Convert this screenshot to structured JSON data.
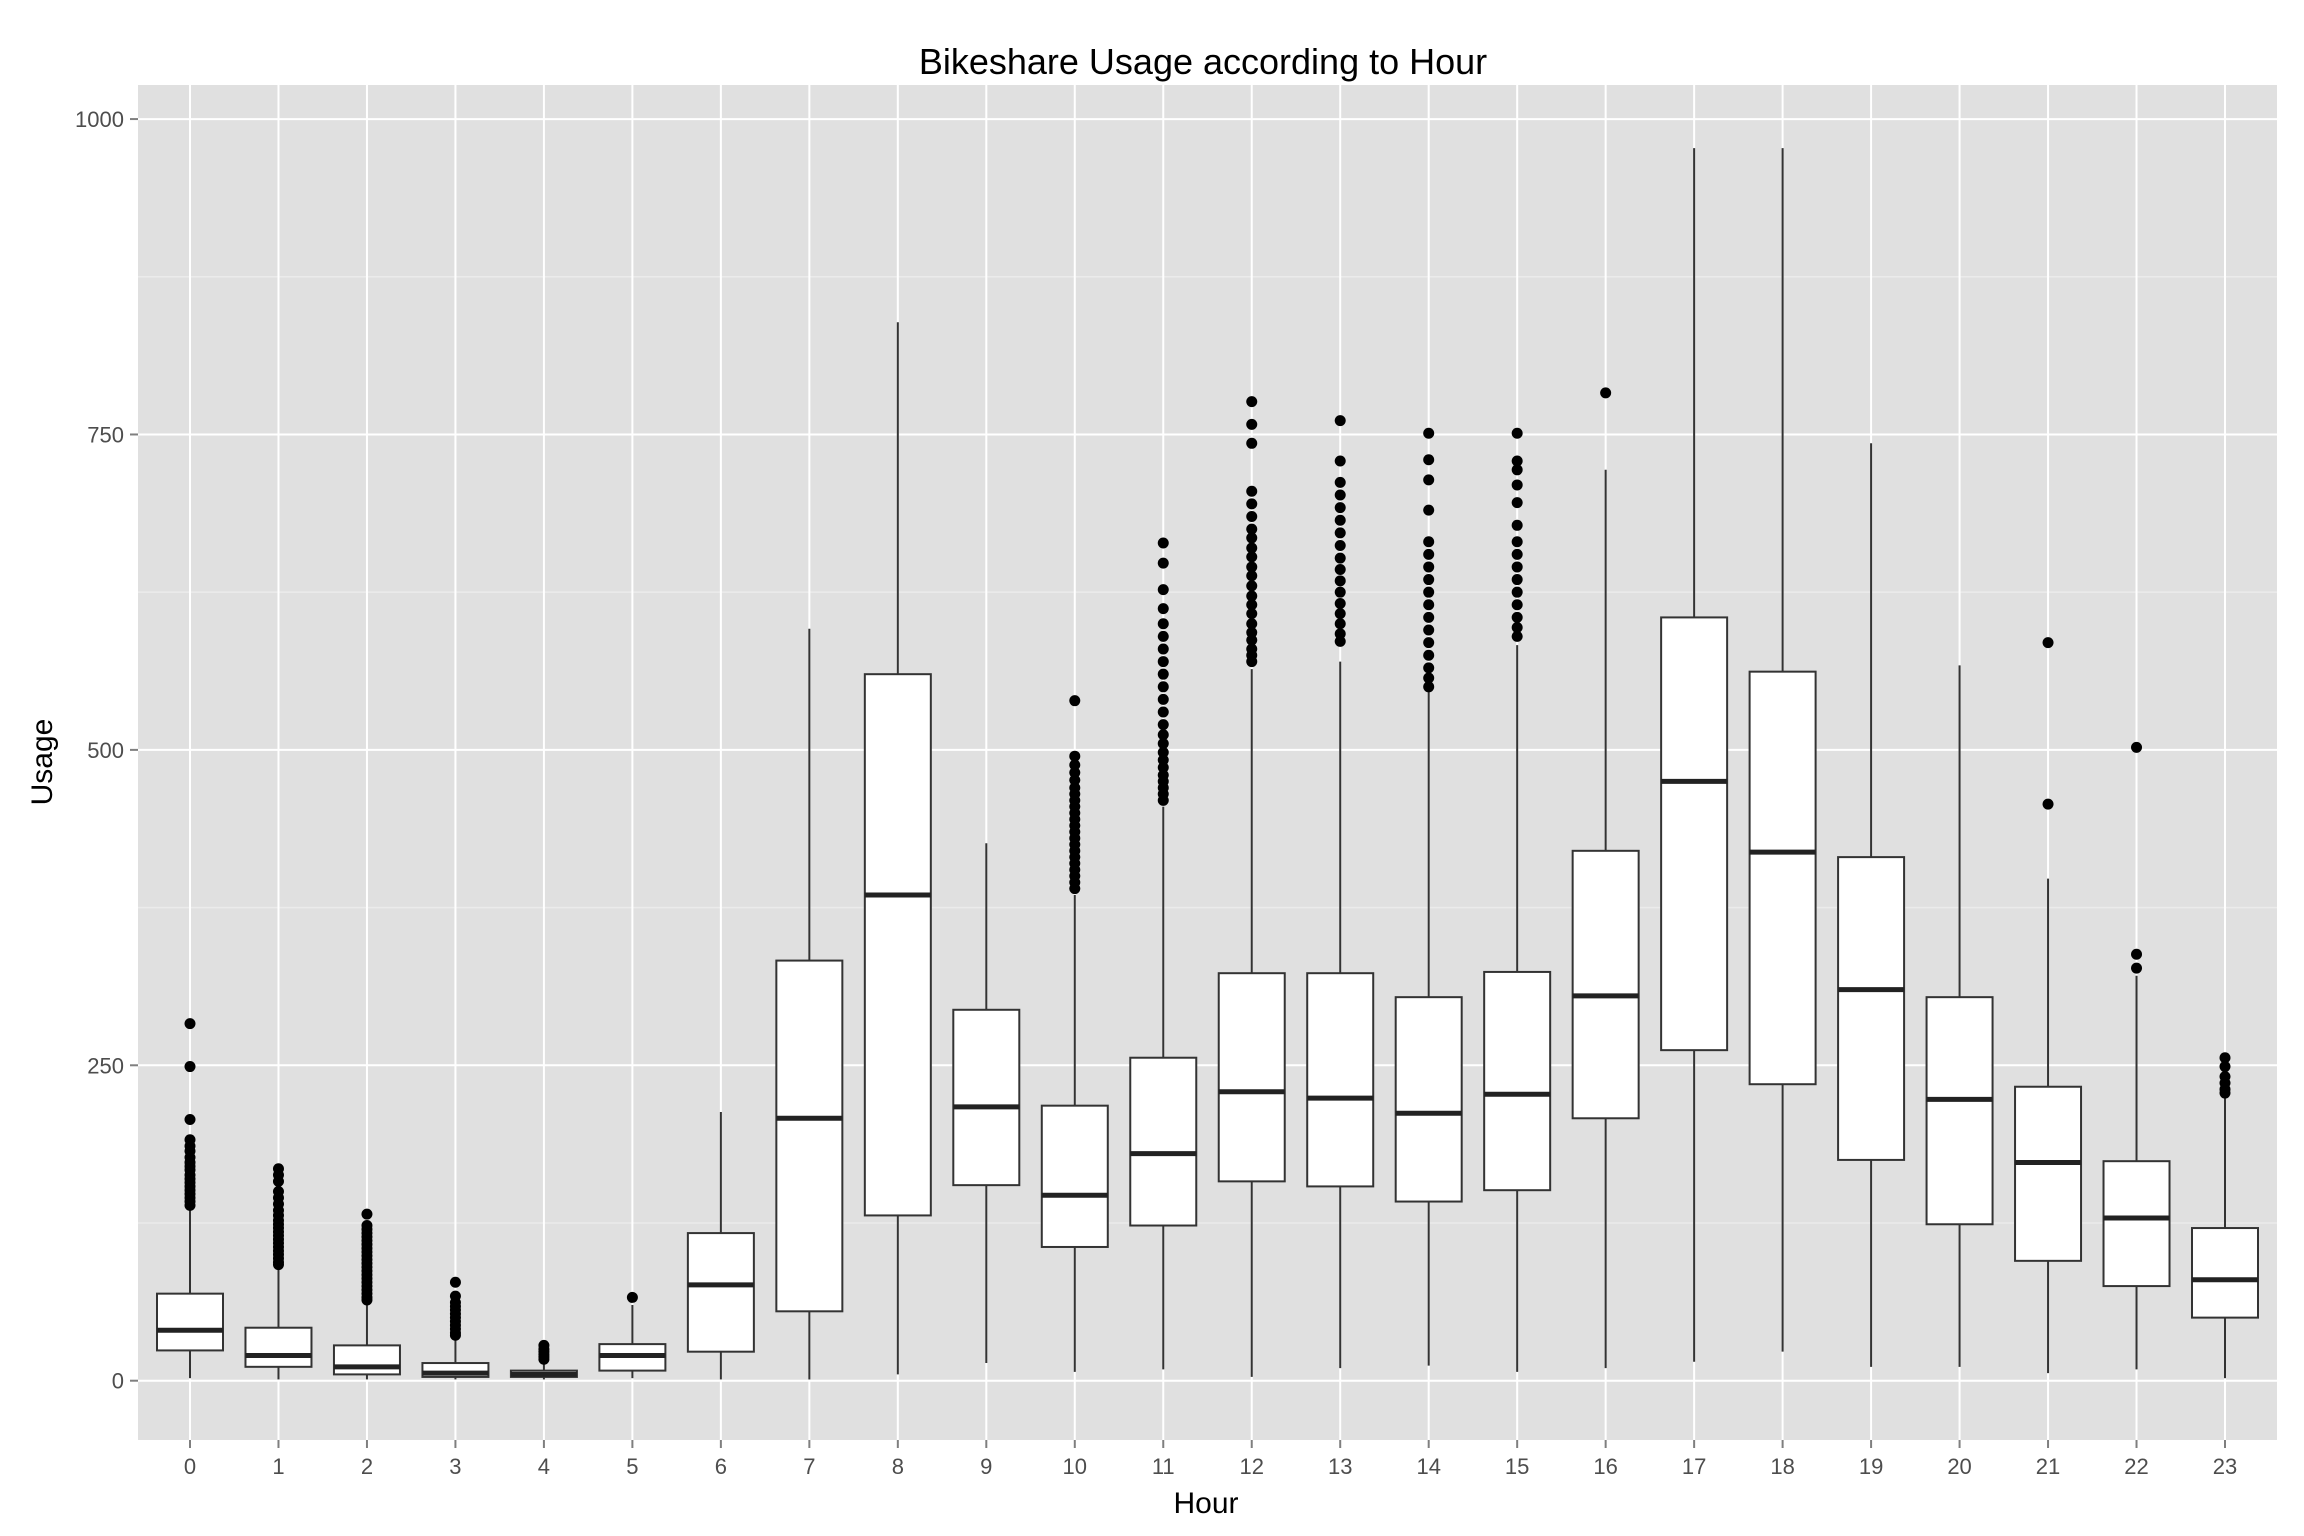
{
  "chart_data": {
    "type": "boxplot",
    "title": "Bikeshare Usage according to Hour",
    "xlabel": "Hour",
    "ylabel": "Usage",
    "ylim": [
      -47,
      1027
    ],
    "yticks": [
      0,
      250,
      500,
      750,
      1000
    ],
    "grid": true,
    "legend": "none",
    "colors": {
      "panel": "#e0e0e0",
      "grid_major": "#ffffff",
      "grid_minor": "#ebebeb",
      "box_fill": "#ffffff",
      "box_stroke": "#333333",
      "median": "#222222",
      "outlier": "#000000",
      "tick_label": "#4d4d4d",
      "title": "#000000"
    },
    "categories": [
      "0",
      "1",
      "2",
      "3",
      "4",
      "5",
      "6",
      "7",
      "8",
      "9",
      "10",
      "11",
      "12",
      "13",
      "14",
      "15",
      "16",
      "17",
      "18",
      "19",
      "20",
      "21",
      "22",
      "23"
    ],
    "boxes": [
      {
        "hour": "0",
        "lower": 2,
        "q1": 24,
        "median": 40,
        "q3": 69,
        "upper": 136,
        "outliers": [
          283,
          249,
          207,
          191,
          186,
          182,
          177,
          173,
          170,
          167,
          163,
          160,
          157,
          154,
          151,
          148,
          145,
          142,
          139
        ]
      },
      {
        "hour": "1",
        "lower": 1,
        "q1": 11,
        "median": 20,
        "q3": 42,
        "upper": 90,
        "outliers": [
          168,
          163,
          158,
          150,
          145,
          140,
          135,
          131,
          127,
          124,
          121,
          118,
          115,
          112,
          109,
          106,
          103,
          100,
          97,
          94,
          92
        ]
      },
      {
        "hour": "2",
        "lower": 1,
        "q1": 5,
        "median": 11,
        "q3": 28,
        "upper": 62,
        "outliers": [
          132,
          123,
          120,
          117,
          114,
          111,
          108,
          105,
          102,
          99,
          96,
          93,
          90,
          87,
          84,
          81,
          78,
          75,
          72,
          69,
          66,
          64
        ]
      },
      {
        "hour": "3",
        "lower": 1,
        "q1": 3,
        "median": 6,
        "q3": 14,
        "upper": 34,
        "outliers": [
          78,
          67,
          62,
          59,
          56,
          53,
          50,
          47,
          44,
          41,
          38,
          36
        ]
      },
      {
        "hour": "4",
        "lower": 1,
        "q1": 3,
        "median": 5,
        "q3": 8,
        "upper": 15,
        "outliers": [
          28,
          25,
          23,
          21,
          19,
          17
        ]
      },
      {
        "hour": "5",
        "lower": 2,
        "q1": 8,
        "median": 20,
        "q3": 29,
        "upper": 60,
        "outliers": [
          66
        ]
      },
      {
        "hour": "6",
        "lower": 1,
        "q1": 23,
        "median": 76,
        "q3": 117,
        "upper": 213,
        "outliers": []
      },
      {
        "hour": "7",
        "lower": 1,
        "q1": 55,
        "median": 208,
        "q3": 333,
        "upper": 596,
        "outliers": []
      },
      {
        "hour": "8",
        "lower": 5,
        "q1": 131,
        "median": 385,
        "q3": 560,
        "upper": 839,
        "outliers": []
      },
      {
        "hour": "9",
        "lower": 14,
        "q1": 155,
        "median": 217,
        "q3": 294,
        "upper": 426,
        "outliers": []
      },
      {
        "hour": "10",
        "lower": 7,
        "q1": 106,
        "median": 147,
        "q3": 218,
        "upper": 385,
        "outliers": [
          539,
          495,
          488,
          482,
          476,
          470,
          465,
          460,
          455,
          450,
          445,
          440,
          435,
          430,
          425,
          420,
          415,
          410,
          405,
          400,
          395,
          390
        ]
      },
      {
        "hour": "11",
        "lower": 9,
        "q1": 123,
        "median": 180,
        "q3": 256,
        "upper": 455,
        "outliers": [
          664,
          648,
          627,
          612,
          600,
          590,
          580,
          570,
          560,
          550,
          540,
          530,
          520,
          512,
          505,
          498,
          492,
          486,
          480,
          475,
          470,
          465,
          460
        ]
      },
      {
        "hour": "12",
        "lower": 3,
        "q1": 158,
        "median": 229,
        "q3": 323,
        "upper": 564,
        "outliers": [
          776,
          758,
          743,
          705,
          695,
          685,
          675,
          668,
          660,
          653,
          645,
          638,
          630,
          622,
          615,
          608,
          600,
          593,
          587,
          580,
          575,
          570
        ]
      },
      {
        "hour": "13",
        "lower": 10,
        "q1": 154,
        "median": 224,
        "q3": 323,
        "upper": 570,
        "outliers": [
          761,
          729,
          712,
          702,
          692,
          682,
          672,
          662,
          652,
          643,
          634,
          625,
          616,
          608,
          600,
          592,
          586
        ]
      },
      {
        "hour": "14",
        "lower": 12,
        "q1": 142,
        "median": 212,
        "q3": 304,
        "upper": 549,
        "outliers": [
          751,
          730,
          714,
          690,
          665,
          655,
          645,
          635,
          625,
          615,
          605,
          595,
          585,
          575,
          565,
          557,
          550
        ]
      },
      {
        "hour": "15",
        "lower": 7,
        "q1": 151,
        "median": 227,
        "q3": 324,
        "upper": 583,
        "outliers": [
          751,
          729,
          722,
          710,
          696,
          678,
          665,
          655,
          645,
          635,
          625,
          615,
          605,
          597,
          590
        ]
      },
      {
        "hour": "16",
        "lower": 10,
        "q1": 208,
        "median": 305,
        "q3": 420,
        "upper": 722,
        "outliers": [
          783
        ]
      },
      {
        "hour": "17",
        "lower": 15,
        "q1": 262,
        "median": 475,
        "q3": 605,
        "upper": 977,
        "outliers": []
      },
      {
        "hour": "18",
        "lower": 23,
        "q1": 235,
        "median": 419,
        "q3": 562,
        "upper": 977,
        "outliers": []
      },
      {
        "hour": "19",
        "lower": 11,
        "q1": 175,
        "median": 310,
        "q3": 415,
        "upper": 743,
        "outliers": []
      },
      {
        "hour": "20",
        "lower": 11,
        "q1": 124,
        "median": 223,
        "q3": 304,
        "upper": 567,
        "outliers": []
      },
      {
        "hour": "21",
        "lower": 6,
        "q1": 95,
        "median": 173,
        "q3": 233,
        "upper": 398,
        "outliers": [
          585,
          457
        ]
      },
      {
        "hour": "22",
        "lower": 9,
        "q1": 75,
        "median": 129,
        "q3": 174,
        "upper": 321,
        "outliers": [
          502,
          338,
          327
        ]
      },
      {
        "hour": "23",
        "lower": 2,
        "q1": 50,
        "median": 80,
        "q3": 121,
        "upper": 226,
        "outliers": [
          256,
          249,
          241,
          236,
          231,
          228
        ]
      }
    ]
  }
}
